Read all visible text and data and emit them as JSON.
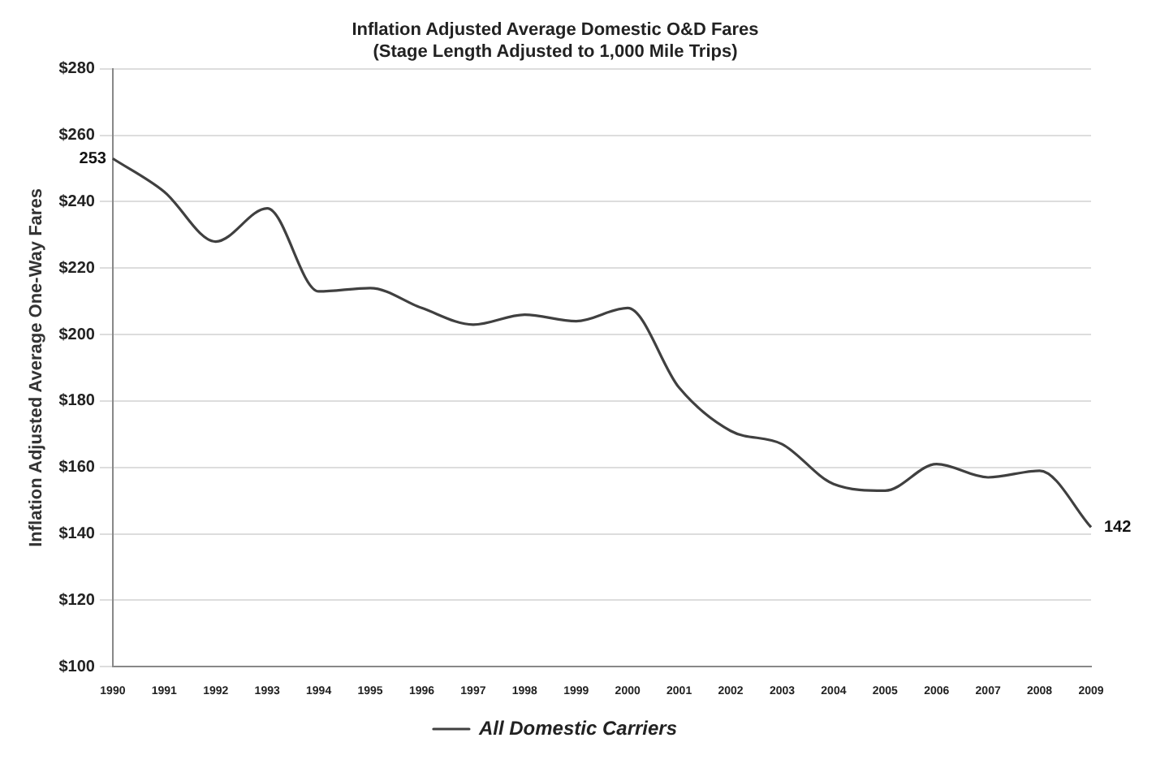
{
  "chart_data": {
    "type": "line",
    "title": "Inflation Adjusted Average Domestic O&D Fares\n(Stage Length Adjusted to 1,000 Mile Trips)",
    "ylabel": "Inflation Adjusted Average One-Way Fares",
    "categories": [
      "1990",
      "1991",
      "1992",
      "1993",
      "1994",
      "1995",
      "1996",
      "1997",
      "1998",
      "1999",
      "2000",
      "2001",
      "2002",
      "2003",
      "2004",
      "2005",
      "2006",
      "2007",
      "2008",
      "2009"
    ],
    "series": [
      {
        "name": "All Domestic Carriers",
        "color": "#404040",
        "values": [
          253,
          243,
          228,
          238,
          213,
          214,
          208,
          203,
          206,
          204,
          208,
          184,
          171,
          167,
          155,
          153,
          161,
          157,
          159,
          142
        ],
        "value_labels": [
          "253",
          null,
          null,
          null,
          null,
          null,
          null,
          null,
          null,
          null,
          null,
          null,
          null,
          null,
          null,
          null,
          null,
          null,
          null,
          "142"
        ]
      }
    ],
    "ylim": [
      100,
      280
    ],
    "yticks": [
      {
        "value": 100,
        "label": "$100"
      },
      {
        "value": 120,
        "label": "$120"
      },
      {
        "value": 140,
        "label": "$140"
      },
      {
        "value": 160,
        "label": "$160"
      },
      {
        "value": 180,
        "label": "$180"
      },
      {
        "value": 200,
        "label": "$200"
      },
      {
        "value": 220,
        "label": "$220"
      },
      {
        "value": 240,
        "label": "$240"
      },
      {
        "value": 260,
        "label": "$260"
      },
      {
        "value": 280,
        "label": "$280"
      }
    ],
    "grid": "y",
    "legend": "bottom",
    "marker": "none",
    "line_style": "solid"
  }
}
